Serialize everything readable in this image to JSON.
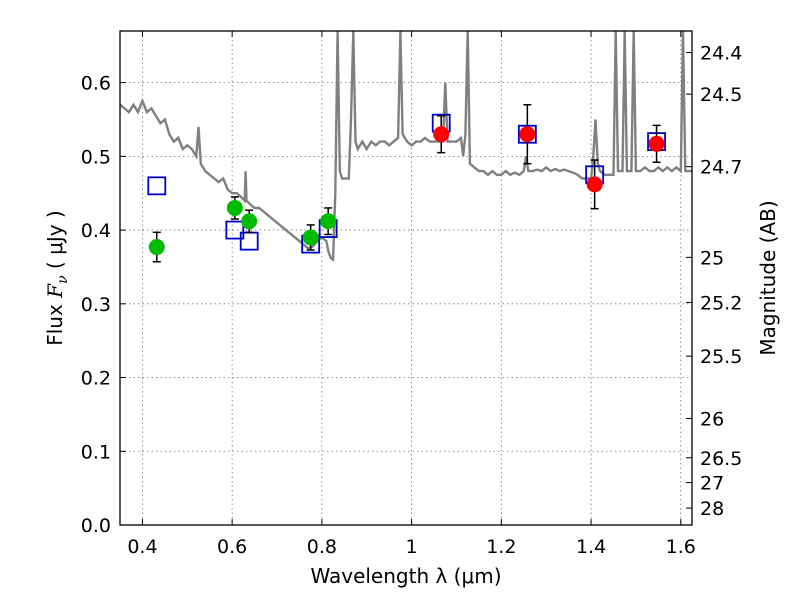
{
  "chart_data": {
    "type": "scatter",
    "xlabel": "Wavelength  λ (μm)",
    "ylabel": "Flux  F_ν  ( μJy )",
    "ylabel_parts": {
      "pre": "Flux  ",
      "var": "F",
      "sub": "ν",
      "mid": "  ( ",
      "unit": "μJy",
      "post": " )"
    },
    "ylabel_right": "Magnitude (AB)",
    "xlim": [
      0.35,
      1.625
    ],
    "ylim": [
      0.0,
      0.67
    ],
    "xticks": [
      {
        "value": 0.4,
        "label": "0.4"
      },
      {
        "value": 0.6,
        "label": "0.6"
      },
      {
        "value": 0.8,
        "label": "0.8"
      },
      {
        "value": 1.0,
        "label": "1"
      },
      {
        "value": 1.2,
        "label": "1.2"
      },
      {
        "value": 1.4,
        "label": "1.4"
      },
      {
        "value": 1.6,
        "label": "1.6"
      }
    ],
    "yticks": [
      {
        "value": 0.0,
        "label": "0.0"
      },
      {
        "value": 0.1,
        "label": "0.1"
      },
      {
        "value": 0.2,
        "label": "0.2"
      },
      {
        "value": 0.3,
        "label": "0.3"
      },
      {
        "value": 0.4,
        "label": "0.4"
      },
      {
        "value": 0.5,
        "label": "0.5"
      },
      {
        "value": 0.6,
        "label": "0.6"
      }
    ],
    "right_ticks": [
      {
        "flux": 0.6408,
        "label": "24.4"
      },
      {
        "flux": 0.5844,
        "label": "24.5"
      },
      {
        "flux": 0.486,
        "label": "24.7"
      },
      {
        "flux": 0.363,
        "label": "25"
      },
      {
        "flux": 0.3019,
        "label": "25.2"
      },
      {
        "flux": 0.229,
        "label": "25.5"
      },
      {
        "flux": 0.1445,
        "label": "26"
      },
      {
        "flux": 0.0912,
        "label": "26.5"
      },
      {
        "flux": 0.0575,
        "label": "27"
      },
      {
        "flux": 0.0229,
        "label": "28"
      }
    ],
    "grid": true,
    "series": [
      {
        "marker": "circle",
        "color": "#00bb00",
        "points": [
          {
            "x": 0.432,
            "y": 0.377,
            "err": 0.02
          },
          {
            "x": 0.606,
            "y": 0.43,
            "err": 0.015
          },
          {
            "x": 0.638,
            "y": 0.412,
            "err": 0.015
          },
          {
            "x": 0.775,
            "y": 0.39,
            "err": 0.017
          },
          {
            "x": 0.814,
            "y": 0.412,
            "err": 0.018
          }
        ]
      },
      {
        "marker": "circle",
        "color": "#ff0000",
        "points": [
          {
            "x": 1.066,
            "y": 0.53,
            "err": 0.025
          },
          {
            "x": 1.258,
            "y": 0.53,
            "err": 0.04
          },
          {
            "x": 1.408,
            "y": 0.462,
            "err": 0.033
          },
          {
            "x": 1.546,
            "y": 0.517,
            "err": 0.025
          }
        ]
      },
      {
        "marker": "square-open",
        "color": "#0000cc",
        "points": [
          {
            "x": 0.432,
            "y": 0.46
          },
          {
            "x": 0.606,
            "y": 0.4
          },
          {
            "x": 0.638,
            "y": 0.385
          },
          {
            "x": 0.775,
            "y": 0.381
          },
          {
            "x": 0.814,
            "y": 0.402
          },
          {
            "x": 1.066,
            "y": 0.545
          },
          {
            "x": 1.258,
            "y": 0.53
          },
          {
            "x": 1.408,
            "y": 0.475
          },
          {
            "x": 1.546,
            "y": 0.52
          }
        ]
      },
      {
        "marker": "line",
        "color": "#808080",
        "points": [
          [
            0.35,
            0.57
          ],
          [
            0.36,
            0.565
          ],
          [
            0.37,
            0.56
          ],
          [
            0.38,
            0.57
          ],
          [
            0.39,
            0.56
          ],
          [
            0.4,
            0.575
          ],
          [
            0.41,
            0.56
          ],
          [
            0.42,
            0.565
          ],
          [
            0.43,
            0.555
          ],
          [
            0.44,
            0.545
          ],
          [
            0.45,
            0.55
          ],
          [
            0.46,
            0.53
          ],
          [
            0.47,
            0.52
          ],
          [
            0.48,
            0.525
          ],
          [
            0.49,
            0.51
          ],
          [
            0.5,
            0.515
          ],
          [
            0.51,
            0.51
          ],
          [
            0.52,
            0.5
          ],
          [
            0.525,
            0.54
          ],
          [
            0.53,
            0.49
          ],
          [
            0.54,
            0.48
          ],
          [
            0.55,
            0.475
          ],
          [
            0.56,
            0.47
          ],
          [
            0.57,
            0.465
          ],
          [
            0.58,
            0.47
          ],
          [
            0.59,
            0.455
          ],
          [
            0.6,
            0.45
          ],
          [
            0.61,
            0.45
          ],
          [
            0.62,
            0.445
          ],
          [
            0.628,
            0.44
          ],
          [
            0.63,
            0.48
          ],
          [
            0.632,
            0.44
          ],
          [
            0.64,
            0.435
          ],
          [
            0.65,
            0.43
          ],
          [
            0.66,
            0.43
          ],
          [
            0.67,
            0.425
          ],
          [
            0.68,
            0.42
          ],
          [
            0.69,
            0.415
          ],
          [
            0.7,
            0.41
          ],
          [
            0.71,
            0.405
          ],
          [
            0.72,
            0.4
          ],
          [
            0.73,
            0.395
          ],
          [
            0.74,
            0.39
          ],
          [
            0.75,
            0.385
          ],
          [
            0.76,
            0.38
          ],
          [
            0.77,
            0.375
          ],
          [
            0.78,
            0.378
          ],
          [
            0.79,
            0.385
          ],
          [
            0.8,
            0.39
          ],
          [
            0.81,
            0.385
          ],
          [
            0.815,
            0.37
          ],
          [
            0.82,
            0.362
          ],
          [
            0.825,
            0.36
          ],
          [
            0.83,
            0.45
          ],
          [
            0.835,
            0.67
          ],
          [
            0.84,
            0.48
          ],
          [
            0.845,
            0.47
          ],
          [
            0.85,
            0.47
          ],
          [
            0.86,
            0.47
          ],
          [
            0.865,
            0.55
          ],
          [
            0.87,
            0.67
          ],
          [
            0.875,
            0.52
          ],
          [
            0.88,
            0.51
          ],
          [
            0.89,
            0.52
          ],
          [
            0.9,
            0.51
          ],
          [
            0.91,
            0.52
          ],
          [
            0.92,
            0.515
          ],
          [
            0.93,
            0.52
          ],
          [
            0.94,
            0.52
          ],
          [
            0.95,
            0.515
          ],
          [
            0.96,
            0.52
          ],
          [
            0.97,
            0.525
          ],
          [
            0.975,
            0.67
          ],
          [
            0.98,
            0.53
          ],
          [
            0.99,
            0.52
          ],
          [
            1.0,
            0.515
          ],
          [
            1.01,
            0.52
          ],
          [
            1.02,
            0.52
          ],
          [
            1.03,
            0.525
          ],
          [
            1.04,
            0.52
          ],
          [
            1.05,
            0.52
          ],
          [
            1.06,
            0.52
          ],
          [
            1.07,
            0.52
          ],
          [
            1.075,
            0.6
          ],
          [
            1.08,
            0.52
          ],
          [
            1.09,
            0.52
          ],
          [
            1.1,
            0.52
          ],
          [
            1.11,
            0.525
          ],
          [
            1.115,
            0.5
          ],
          [
            1.12,
            0.53
          ],
          [
            1.125,
            0.67
          ],
          [
            1.13,
            0.49
          ],
          [
            1.14,
            0.485
          ],
          [
            1.15,
            0.48
          ],
          [
            1.16,
            0.48
          ],
          [
            1.17,
            0.475
          ],
          [
            1.18,
            0.48
          ],
          [
            1.19,
            0.475
          ],
          [
            1.2,
            0.475
          ],
          [
            1.21,
            0.48
          ],
          [
            1.22,
            0.475
          ],
          [
            1.23,
            0.478
          ],
          [
            1.24,
            0.475
          ],
          [
            1.25,
            0.48
          ],
          [
            1.255,
            0.5
          ],
          [
            1.26,
            0.48
          ],
          [
            1.27,
            0.48
          ],
          [
            1.28,
            0.482
          ],
          [
            1.29,
            0.48
          ],
          [
            1.3,
            0.485
          ],
          [
            1.31,
            0.48
          ],
          [
            1.32,
            0.483
          ],
          [
            1.33,
            0.48
          ],
          [
            1.34,
            0.482
          ],
          [
            1.35,
            0.48
          ],
          [
            1.36,
            0.478
          ],
          [
            1.37,
            0.475
          ],
          [
            1.38,
            0.47
          ],
          [
            1.39,
            0.47
          ],
          [
            1.4,
            0.47
          ],
          [
            1.405,
            0.5
          ],
          [
            1.41,
            0.55
          ],
          [
            1.415,
            0.49
          ],
          [
            1.42,
            0.48
          ],
          [
            1.43,
            0.475
          ],
          [
            1.44,
            0.475
          ],
          [
            1.45,
            0.475
          ],
          [
            1.455,
            0.67
          ],
          [
            1.46,
            0.48
          ],
          [
            1.47,
            0.48
          ],
          [
            1.475,
            0.67
          ],
          [
            1.48,
            0.48
          ],
          [
            1.49,
            0.48
          ],
          [
            1.495,
            0.67
          ],
          [
            1.5,
            0.48
          ],
          [
            1.51,
            0.48
          ],
          [
            1.52,
            0.485
          ],
          [
            1.53,
            0.48
          ],
          [
            1.54,
            0.48
          ],
          [
            1.55,
            0.485
          ],
          [
            1.56,
            0.48
          ],
          [
            1.57,
            0.485
          ],
          [
            1.58,
            0.48
          ],
          [
            1.59,
            0.485
          ],
          [
            1.6,
            0.48
          ],
          [
            1.605,
            0.67
          ],
          [
            1.61,
            0.48
          ],
          [
            1.625,
            0.48
          ]
        ]
      }
    ]
  }
}
